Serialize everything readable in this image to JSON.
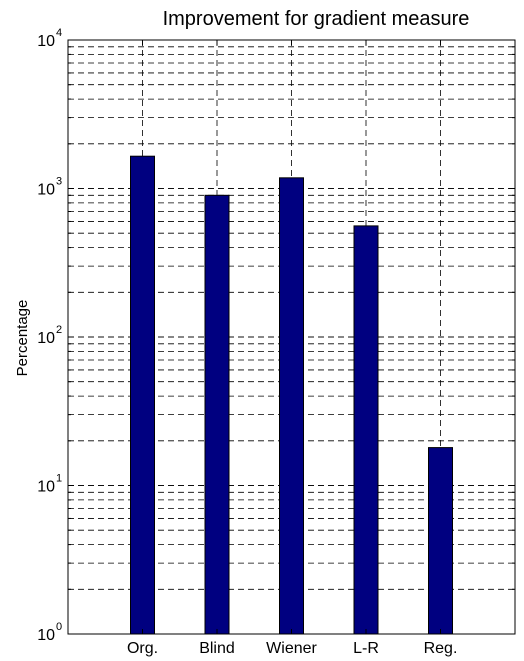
{
  "chart_data": {
    "type": "bar",
    "title": "Improvement for gradient measure",
    "xlabel": "",
    "ylabel": "Percentage",
    "y_scale": "log",
    "ylim": [
      1,
      10000
    ],
    "grid": "y major and minor, dashed",
    "categories": [
      "Org.",
      "Blind",
      "Wiener",
      "L-R",
      "Reg."
    ],
    "values": [
      1650,
      900,
      1180,
      560,
      18
    ],
    "bar_color": "#000080",
    "y_ticks": [
      {
        "base": "10",
        "exp": "0"
      },
      {
        "base": "10",
        "exp": "1"
      },
      {
        "base": "10",
        "exp": "2"
      },
      {
        "base": "10",
        "exp": "3"
      },
      {
        "base": "10",
        "exp": "4"
      }
    ]
  }
}
